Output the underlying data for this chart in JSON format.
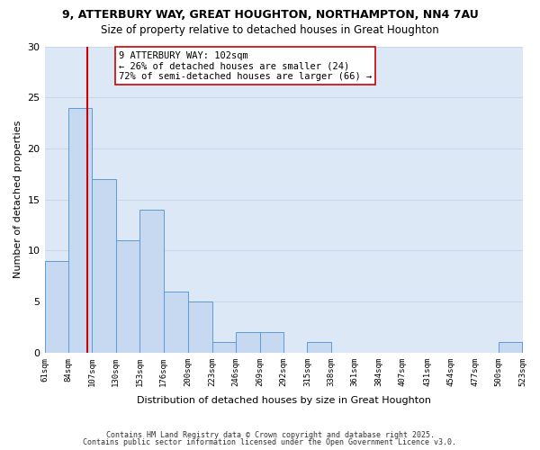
{
  "title1": "9, ATTERBURY WAY, GREAT HOUGHTON, NORTHAMPTON, NN4 7AU",
  "title2": "Size of property relative to detached houses in Great Houghton",
  "xlabel": "Distribution of detached houses by size in Great Houghton",
  "ylabel": "Number of detached properties",
  "bar_color": "#c6d9f0",
  "bar_edge_color": "#5b9bd5",
  "bins": [
    61,
    84,
    107,
    130,
    153,
    176,
    200,
    223,
    246,
    269,
    292,
    315,
    338,
    361,
    384,
    407,
    431,
    454,
    477,
    500,
    523
  ],
  "counts": [
    9,
    24,
    17,
    11,
    14,
    6,
    5,
    1,
    2,
    2,
    0,
    1,
    0,
    0,
    0,
    0,
    0,
    0,
    0,
    1
  ],
  "tick_labels": [
    "61sqm",
    "84sqm",
    "107sqm",
    "130sqm",
    "153sqm",
    "176sqm",
    "200sqm",
    "223sqm",
    "246sqm",
    "269sqm",
    "292sqm",
    "315sqm",
    "338sqm",
    "361sqm",
    "384sqm",
    "407sqm",
    "431sqm",
    "454sqm",
    "477sqm",
    "500sqm",
    "523sqm"
  ],
  "vline_x": 102,
  "vline_color": "#cc0000",
  "annotation_title": "9 ATTERBURY WAY: 102sqm",
  "annotation_line1": "← 26% of detached houses are smaller (24)",
  "annotation_line2": "72% of semi-detached houses are larger (66) →",
  "ylim": [
    0,
    30
  ],
  "yticks": [
    0,
    5,
    10,
    15,
    20,
    25,
    30
  ],
  "grid_color": "#c8d8ec",
  "bg_color": "#dce8f5",
  "fig_bg_color": "#ffffff",
  "footer1": "Contains HM Land Registry data © Crown copyright and database right 2025.",
  "footer2": "Contains public sector information licensed under the Open Government Licence v3.0."
}
